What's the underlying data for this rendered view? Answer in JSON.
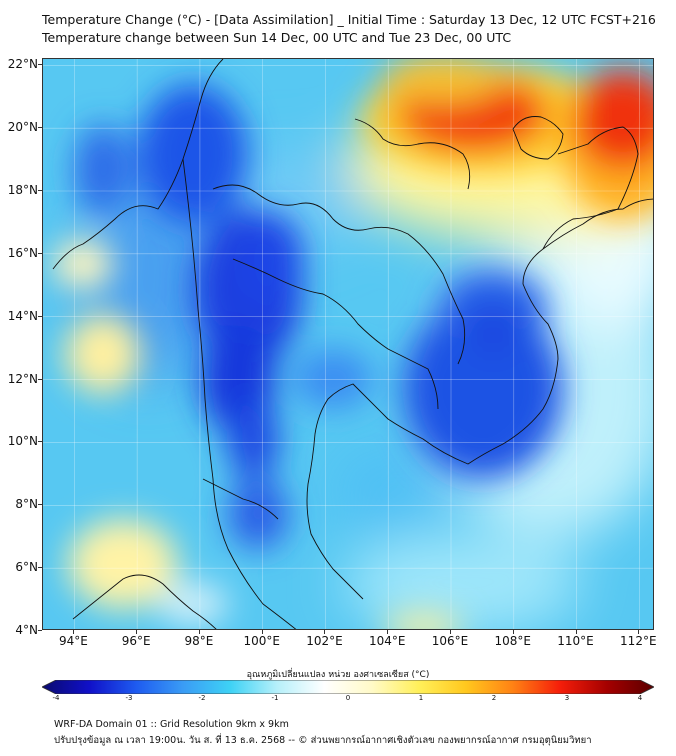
{
  "header": {
    "title_line1": "Temperature Change (°C) - [Data Assimilation] _ Initial Time : Saturday 13 Dec, 12 UTC FCST+216",
    "title_line2": "Temperature change between Sun 14 Dec, 00 UTC and Tue 23 Dec, 00 UTC"
  },
  "map": {
    "lat_labels": [
      "22°N",
      "20°N",
      "18°N",
      "16°N",
      "14°N",
      "12°N",
      "10°N",
      "8°N",
      "6°N",
      "4°N"
    ],
    "lat_values": [
      22,
      20,
      18,
      16,
      14,
      12,
      10,
      8,
      6,
      4
    ],
    "lon_labels": [
      "94°E",
      "96°E",
      "98°E",
      "100°E",
      "102°E",
      "104°E",
      "106°E",
      "108°E",
      "110°E",
      "112°E"
    ],
    "lon_values": [
      94,
      96,
      98,
      100,
      102,
      104,
      106,
      108,
      110,
      112
    ],
    "lon_range": [
      93,
      112.5
    ],
    "lat_range": [
      4,
      22.2
    ],
    "anomalies": [
      {
        "region": "southern China / Gulf of Tonkin",
        "lon": 108.5,
        "lat": 21.0,
        "value": 3.4
      },
      {
        "region": "far north-east corner",
        "lon": 111.5,
        "lat": 20.5,
        "value": 3.2
      },
      {
        "region": "north-west Myanmar",
        "lon": 95.5,
        "lat": 19.6,
        "value": -2.2
      },
      {
        "region": "western Thailand / Myanmar border",
        "lon": 98.5,
        "lat": 16.0,
        "value": -2.5
      },
      {
        "region": "central Thailand west",
        "lon": 99.0,
        "lat": 12.5,
        "value": -2.6
      },
      {
        "region": "Cambodia / southern Laos",
        "lon": 106.5,
        "lat": 14.0,
        "value": -2.5
      },
      {
        "region": "eastern Laos",
        "lon": 105.5,
        "lat": 15.5,
        "value": -2.0
      },
      {
        "region": "southern Myanmar coast",
        "lon": 98.3,
        "lat": 9.0,
        "value": -2.0
      },
      {
        "region": "Andaman Sea west",
        "lon": 94.8,
        "lat": 13.0,
        "value": 0.6
      },
      {
        "region": "Andaman Sea north-west",
        "lon": 94.5,
        "lat": 16.0,
        "value": 0.4
      },
      {
        "region": "Sumatra north",
        "lon": 96.5,
        "lat": 5.5,
        "value": 0.7
      },
      {
        "region": "South China Sea east",
        "lon": 110.5,
        "lat": 15.0,
        "value": -0.3
      }
    ]
  },
  "colorbar": {
    "label": "อุณหภูมิเปลี่ยนแปลง หน่วย องศาเซลเซียส (°C)",
    "min": -4,
    "max": 4,
    "tick_labels": [
      "-4",
      "-3",
      "-2",
      "-1",
      "0",
      "1",
      "2",
      "3",
      "4"
    ],
    "colors": [
      "#0a0a6e",
      "#1010c8",
      "#1e5bf0",
      "#3a9cf5",
      "#3ed2f5",
      "#b7f0fa",
      "#ffffff",
      "#fffac8",
      "#fff05a",
      "#ffc81e",
      "#ff8214",
      "#f51e0a",
      "#a50000",
      "#5a0000"
    ]
  },
  "footer": {
    "line1": "WRF-DA Domain 01 :: Grid Resolution 9km x 9km",
    "line2": "ปรับปรุงข้อมูล ณ เวลา 19:00น. วัน ส. ที่ 13 ธ.ค. 2568 -- © ส่วนพยากรณ์อากาศเชิงตัวเลข กองพยากรณ์อากาศ กรมอุตุนิยมวิทยา"
  }
}
